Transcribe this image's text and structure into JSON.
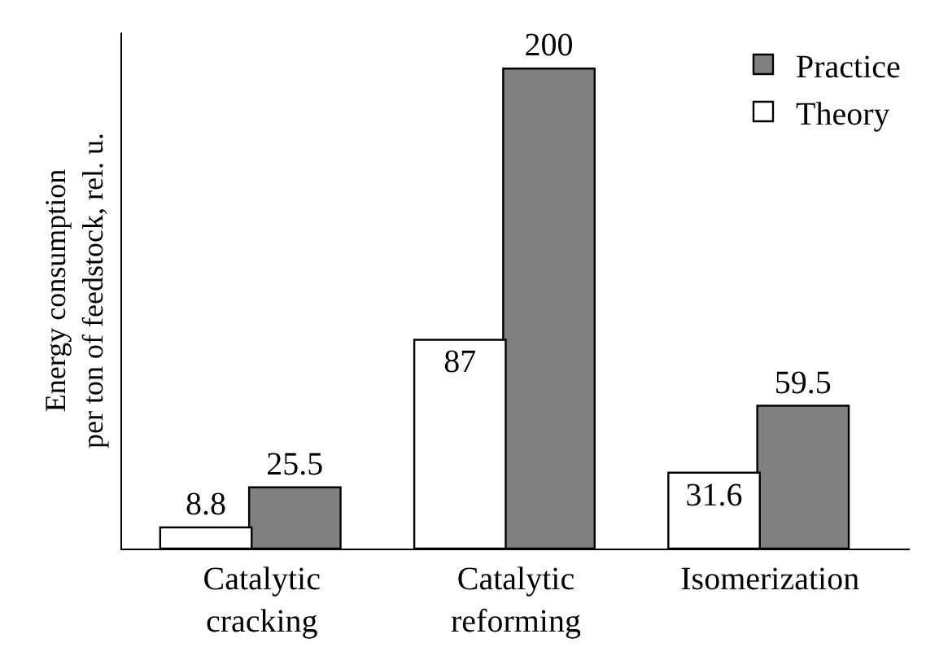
{
  "chart_data": {
    "type": "bar",
    "ylabel": "Energy consumption\nper ton of feedstock, rel. u.",
    "categories": [
      "Catalytic\ncracking",
      "Catalytic\nreforming",
      "Isomerization"
    ],
    "series": [
      {
        "name": "Practice",
        "color": "#808080",
        "values": [
          25.5,
          200,
          59.5
        ]
      },
      {
        "name": "Theory",
        "color": "#ffffff",
        "values": [
          8.8,
          87,
          31.6
        ]
      }
    ],
    "ylim": [
      0,
      215
    ],
    "data_labels": true,
    "legend": "top right"
  }
}
